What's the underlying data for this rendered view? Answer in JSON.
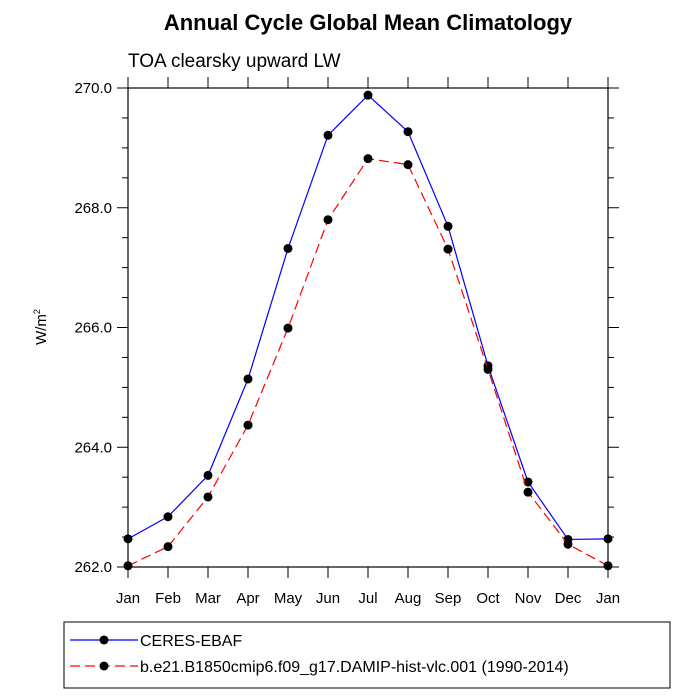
{
  "chart_data": {
    "type": "line",
    "title": "Annual Cycle Global Mean Climatology",
    "subtitle": "TOA clearsky upward LW",
    "ylabel": "W/m",
    "ylabel_superscript": "2",
    "ylim": [
      262.0,
      270.0
    ],
    "yticks": [
      262.0,
      264.0,
      266.0,
      268.0,
      270.0
    ],
    "ytick_labels": [
      "262.0",
      "264.0",
      "266.0",
      "268.0",
      "270.0"
    ],
    "categories": [
      "Jan",
      "Feb",
      "Mar",
      "Apr",
      "May",
      "Jun",
      "Jul",
      "Aug",
      "Sep",
      "Oct",
      "Nov",
      "Dec",
      "Jan"
    ],
    "grid": false,
    "legend_position": "bottom",
    "series": [
      {
        "name": "CERES-EBAF",
        "color": "#0000ff",
        "dash": "solid",
        "values": [
          262.47,
          262.84,
          263.53,
          265.14,
          267.32,
          269.21,
          269.88,
          269.27,
          267.69,
          265.36,
          263.42,
          262.46,
          262.47
        ]
      },
      {
        "name": "b.e21.B1850cmip6.f09_g17.DAMIP-hist-vlc.001 (1990-2014)",
        "color": "#ff0000",
        "dash": "dashed",
        "values": [
          262.02,
          262.34,
          263.17,
          264.37,
          265.99,
          267.8,
          268.82,
          268.72,
          267.31,
          265.3,
          263.25,
          262.38,
          262.02
        ]
      }
    ]
  }
}
